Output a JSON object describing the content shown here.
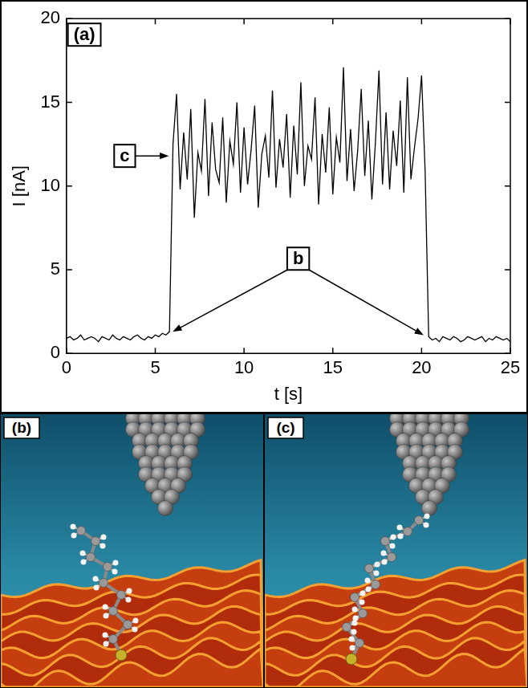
{
  "chart_data": {
    "type": "line",
    "panel_label": "(a)",
    "xlabel": "t [s]",
    "ylabel": "I [nA]",
    "color": "#000000",
    "xlim": [
      0,
      25
    ],
    "ylim": [
      0,
      20
    ],
    "xticks": [
      0,
      5,
      10,
      15,
      20,
      25
    ],
    "yticks": [
      0,
      5,
      10,
      15,
      20
    ],
    "grid": false,
    "x": [
      0,
      0.2,
      0.4,
      0.6,
      0.8,
      1,
      1.2,
      1.4,
      1.6,
      1.8,
      2,
      2.2,
      2.4,
      2.6,
      2.8,
      3,
      3.2,
      3.4,
      3.6,
      3.8,
      4,
      4.2,
      4.4,
      4.6,
      4.8,
      5,
      5.2,
      5.4,
      5.6,
      5.8,
      6,
      6.2,
      6.4,
      6.6,
      6.8,
      7,
      7.2,
      7.4,
      7.6,
      7.8,
      8,
      8.2,
      8.4,
      8.6,
      8.8,
      9,
      9.2,
      9.4,
      9.6,
      9.8,
      10,
      10.2,
      10.4,
      10.6,
      10.8,
      11,
      11.2,
      11.4,
      11.6,
      11.8,
      12,
      12.2,
      12.4,
      12.6,
      12.8,
      13,
      13.2,
      13.4,
      13.6,
      13.8,
      14,
      14.2,
      14.4,
      14.6,
      14.8,
      15,
      15.2,
      15.4,
      15.6,
      15.8,
      16,
      16.2,
      16.4,
      16.6,
      16.8,
      17,
      17.2,
      17.4,
      17.6,
      17.8,
      18,
      18.2,
      18.4,
      18.6,
      18.8,
      19,
      19.2,
      19.4,
      19.6,
      19.8,
      20,
      20.2,
      20.4,
      20.6,
      20.8,
      21,
      21.2,
      21.4,
      21.6,
      21.8,
      22,
      22.2,
      22.4,
      22.6,
      22.8,
      23,
      23.2,
      23.4,
      23.6,
      23.8,
      24,
      24.2,
      24.4,
      24.6,
      24.8,
      25
    ],
    "values": [
      0.9,
      1.0,
      0.8,
      0.9,
      1.1,
      0.8,
      0.9,
      1.0,
      0.9,
      0.7,
      1.0,
      0.9,
      0.8,
      1.1,
      0.9,
      0.8,
      1.0,
      0.9,
      0.8,
      1.0,
      1.1,
      0.9,
      0.8,
      1.0,
      0.9,
      1.1,
      1.0,
      1.2,
      1.1,
      1.3,
      12.5,
      15.5,
      9.8,
      13.2,
      10.4,
      14.6,
      8.1,
      12.0,
      10.9,
      15.2,
      9.4,
      13.8,
      11.0,
      10.2,
      14.1,
      9.0,
      12.7,
      11.3,
      15.0,
      9.6,
      13.5,
      10.1,
      12.2,
      14.8,
      8.7,
      11.9,
      13.0,
      10.5,
      15.7,
      9.9,
      12.8,
      11.1,
      14.3,
      9.3,
      13.6,
      10.7,
      16.2,
      10.0,
      12.4,
      11.6,
      15.3,
      8.9,
      13.1,
      10.8,
      14.7,
      9.5,
      12.9,
      11.4,
      17.1,
      10.3,
      13.4,
      9.7,
      12.1,
      15.8,
      10.6,
      13.9,
      9.2,
      12.6,
      16.9,
      10.1,
      14.4,
      9.8,
      13.3,
      11.2,
      15.1,
      9.6,
      16.5,
      10.4,
      12.3,
      14.0,
      16.6,
      10.9,
      1.0,
      0.8,
      0.9,
      0.7,
      1.0,
      0.9,
      0.8,
      1.0,
      0.9,
      0.7,
      0.8,
      1.0,
      0.9,
      0.8,
      0.9,
      1.0,
      0.7,
      0.9,
      0.8,
      1.0,
      0.9,
      0.8,
      0.9,
      0.7
    ],
    "annotations": [
      {
        "text": "c",
        "x": [
          5.9
        ],
        "y": [
          11.8
        ]
      },
      {
        "text": "b",
        "x": [
          5.8,
          20.3
        ],
        "y": [
          1.1,
          0.9
        ]
      }
    ]
  },
  "illustrations": [
    {
      "label": "(b)"
    },
    {
      "label": "(c)"
    }
  ]
}
